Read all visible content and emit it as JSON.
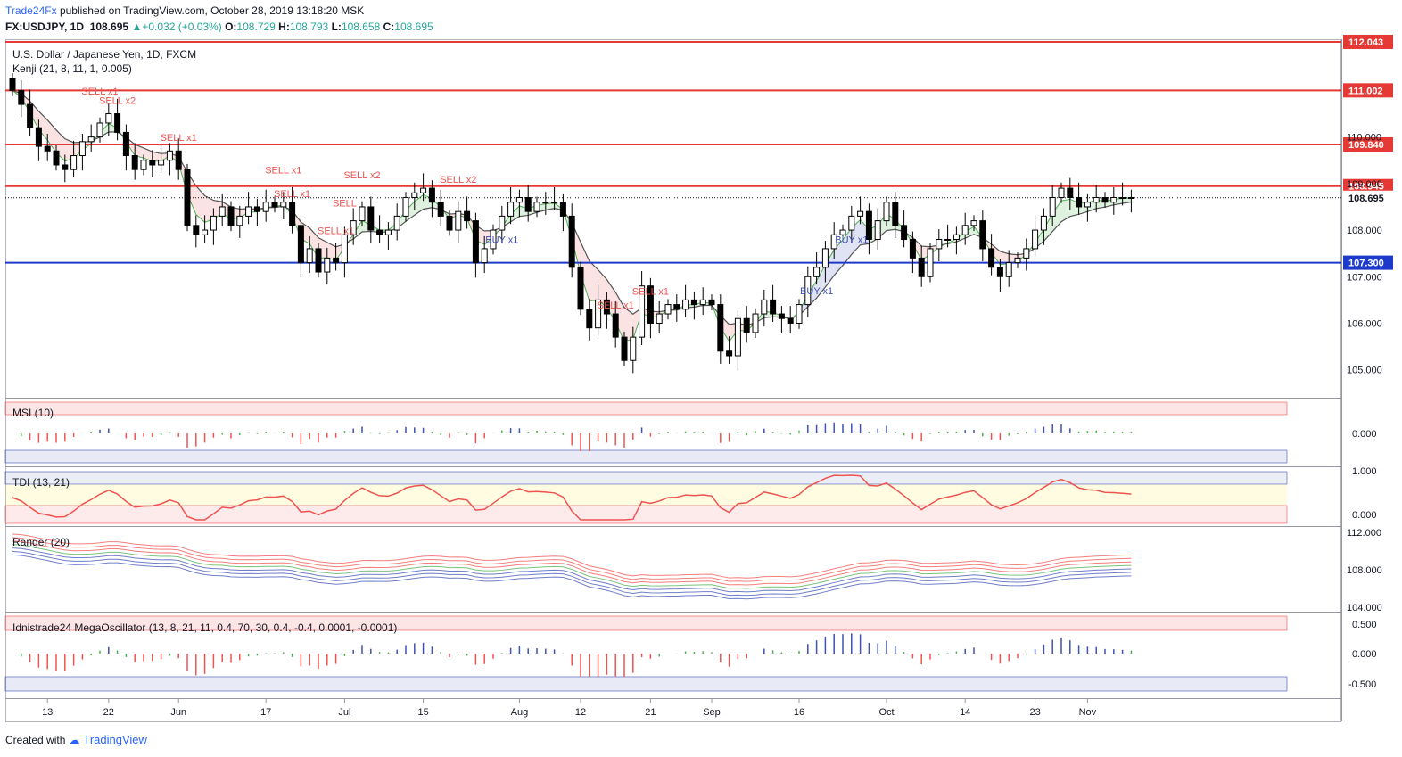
{
  "header": {
    "publisher": "Trade24Fx",
    "published_text": "published on TradingView.com, October 28, 2019 13:18:20 MSK",
    "symbol": "FX:USDJPY, 1D",
    "last": "108.695",
    "change": "+0.032 (+0.03%)",
    "open_label": "O:",
    "open": "108.729",
    "high_label": "H:",
    "high": "108.793",
    "low_label": "L:",
    "low": "108.658",
    "close_label": "C:",
    "close": "108.695"
  },
  "footer": {
    "created_with": "Created with",
    "brand": "TradingView"
  },
  "chart_data": {
    "type": "candlestick",
    "title": "U.S. Dollar / Japanese Yen, 1D, FXCM",
    "overlay_label": "Kenji (21, 8, 11, 1, 0.005)",
    "colors": {
      "up": "#ffffff",
      "down": "#000000",
      "horizontal_red": "#e53935",
      "horizontal_blue": "#1e3acb",
      "buy": "#3f51b5",
      "sell": "#ef5350"
    },
    "price_axis": {
      "range": [
        104.4,
        112.1
      ],
      "ticks": [
        105.0,
        106.0,
        107.0,
        108.0,
        109.0,
        110.0
      ]
    },
    "x_axis": {
      "labels": [
        "13",
        "22",
        "Jun",
        "17",
        "Jul",
        "15",
        "Aug",
        "12",
        "21",
        "Sep",
        "16",
        "Oct",
        "14",
        "23",
        "Nov"
      ],
      "label_bar_index": [
        4,
        11,
        19,
        29,
        38,
        47,
        58,
        65,
        73,
        80,
        90,
        100,
        109,
        117,
        123
      ]
    },
    "horizontal_levels": [
      {
        "price": 112.043,
        "label": "112.043",
        "color": "red"
      },
      {
        "price": 111.002,
        "label": "111.002",
        "color": "red"
      },
      {
        "price": 109.84,
        "label": "109.840",
        "color": "red"
      },
      {
        "price": 108.945,
        "label": "108.945",
        "color": "red"
      },
      {
        "price": 107.3,
        "label": "107.300",
        "color": "blue"
      }
    ],
    "last_price": {
      "price": 108.695,
      "label": "108.695"
    },
    "closes": [
      111.0,
      110.7,
      110.2,
      109.8,
      109.7,
      109.4,
      109.3,
      109.6,
      109.9,
      110.0,
      110.3,
      110.5,
      110.1,
      109.6,
      109.3,
      109.5,
      109.4,
      109.5,
      109.7,
      109.3,
      108.1,
      107.9,
      108.0,
      108.3,
      108.5,
      108.1,
      108.3,
      108.5,
      108.4,
      108.6,
      108.5,
      108.6,
      108.1,
      107.3,
      107.6,
      107.1,
      107.4,
      107.3,
      107.9,
      108.2,
      108.5,
      108.0,
      107.9,
      108.0,
      108.3,
      108.7,
      108.8,
      108.9,
      108.6,
      108.3,
      108.0,
      108.4,
      108.2,
      107.3,
      107.6,
      108.0,
      108.3,
      108.6,
      108.7,
      108.4,
      108.6,
      108.6,
      108.6,
      108.3,
      107.2,
      106.3,
      105.9,
      106.5,
      106.2,
      105.7,
      105.2,
      105.7,
      106.8,
      106.0,
      106.2,
      106.4,
      106.3,
      106.5,
      106.4,
      106.5,
      106.4,
      105.4,
      105.3,
      106.1,
      105.8,
      106.2,
      106.5,
      106.2,
      106.1,
      106.0,
      106.4,
      107.0,
      107.2,
      107.6,
      107.9,
      108.0,
      108.3,
      108.4,
      107.8,
      108.2,
      108.6,
      108.1,
      107.8,
      107.4,
      107.0,
      107.6,
      107.8,
      107.8,
      107.9,
      108.1,
      108.2,
      107.6,
      107.2,
      107.0,
      107.3,
      107.4,
      107.6,
      108.0,
      108.3,
      108.7,
      108.9,
      108.7,
      108.5,
      108.6,
      108.7,
      108.6,
      108.7,
      108.7,
      108.7
    ],
    "markers": [
      {
        "bar": 12,
        "text": "SELL x2",
        "type": "sell"
      },
      {
        "bar": 10,
        "text": "SELL x1",
        "type": "sell"
      },
      {
        "bar": 19,
        "text": "SELL x1",
        "type": "sell"
      },
      {
        "bar": 31,
        "text": "SELL x1",
        "type": "sell"
      },
      {
        "bar": 32,
        "text": "SELL x1",
        "type": "sell"
      },
      {
        "bar": 37,
        "text": "SELL x1",
        "type": "sell"
      },
      {
        "bar": 38,
        "text": "SELL",
        "type": "sell"
      },
      {
        "bar": 40,
        "text": "SELL x2",
        "type": "sell"
      },
      {
        "bar": 51,
        "text": "SELL x2",
        "type": "sell"
      },
      {
        "bar": 56,
        "text": "BUY x1",
        "type": "buy"
      },
      {
        "bar": 69,
        "text": "SELL x1",
        "type": "sell"
      },
      {
        "bar": 73,
        "text": "SELL x1",
        "type": "sell"
      },
      {
        "bar": 92,
        "text": "BUY x1",
        "type": "buy"
      },
      {
        "bar": 96,
        "text": "BUY x1",
        "type": "buy"
      }
    ],
    "panes": [
      {
        "name": "MSI (10)",
        "ticks": [
          "0.000"
        ]
      },
      {
        "name": "TDI (13, 21)",
        "ticks": [
          "1.000",
          "0.000"
        ]
      },
      {
        "name": "Ranger (20)",
        "ticks": [
          "112.000",
          "108.000",
          "104.000"
        ]
      },
      {
        "name": "Idnistrade24 MegaOscillator (13, 8, 21, 11, 0.4, 70, 30, 0.4, -0.4, 0.0001, -0.0001)",
        "ticks": [
          "0.500",
          "0.000",
          "-0.500"
        ]
      }
    ]
  }
}
